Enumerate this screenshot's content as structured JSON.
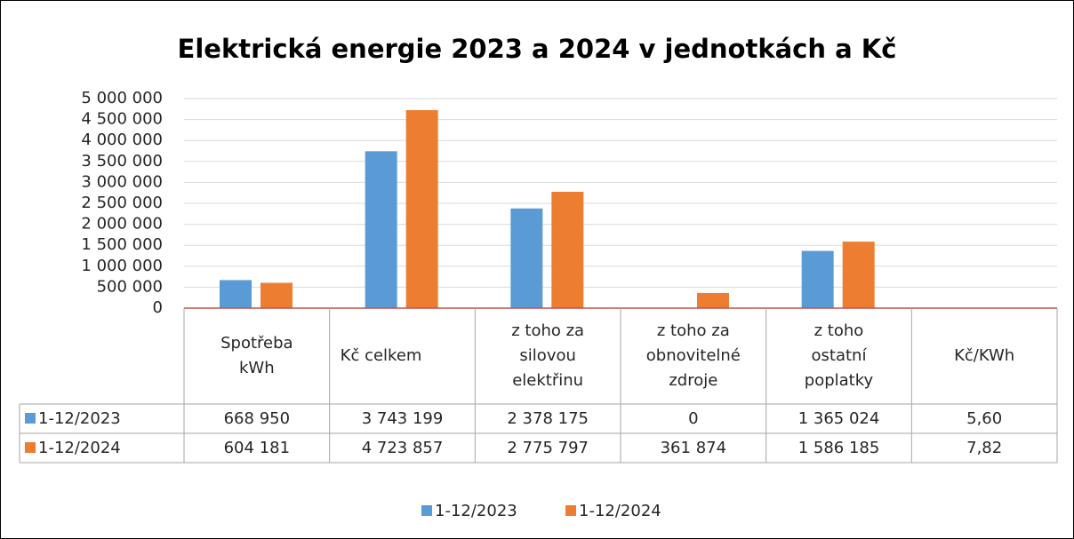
{
  "chart_data": {
    "type": "bar",
    "title": "Elektrická energie 2023 a 2024 v jednotkách a Kč",
    "categories": [
      "Spotřeba\nkWh",
      "Kč celkem",
      "z toho za\nsilovou\nelektřinu",
      "z toho za\nobnovitelné\nzdroje",
      "z toho\nostatní\npoplatky",
      "Kč/KWh"
    ],
    "series": [
      {
        "name": "1-12/2023",
        "color": "#5b9bd5",
        "values": [
          668950,
          3743199,
          2378175,
          0,
          1365024,
          5.6
        ],
        "value_labels": [
          "668 950",
          "3 743 199",
          "2 378 175",
          "0",
          "1 365 024",
          "5,60"
        ]
      },
      {
        "name": "1-12/2024",
        "color": "#ed7d31",
        "values": [
          604181,
          4723857,
          2775797,
          361874,
          1586185,
          7.82
        ],
        "value_labels": [
          "604 181",
          "4 723 857",
          "2 775 797",
          "361 874",
          "1 586 185",
          "7,82"
        ]
      }
    ],
    "ylim": [
      0,
      5000000
    ],
    "yticks": [
      0,
      {
        "value": 500000,
        "label": "500 000"
      },
      {
        "value": 1000000,
        "label": "1 000 000"
      },
      {
        "value": 1500000,
        "label": "1 500 000"
      },
      {
        "value": 2000000,
        "label": "2 000 000"
      },
      {
        "value": 2500000,
        "label": "2 500 000"
      },
      {
        "value": 3000000,
        "label": "3 000 000"
      },
      {
        "value": 3500000,
        "label": "3 500 000"
      },
      {
        "value": 4000000,
        "label": "4 000 000"
      },
      {
        "value": 4500000,
        "label": "4 500 000"
      },
      {
        "value": 5000000,
        "label": "5 000 000"
      }
    ],
    "grid": true,
    "legend": "bottom"
  }
}
